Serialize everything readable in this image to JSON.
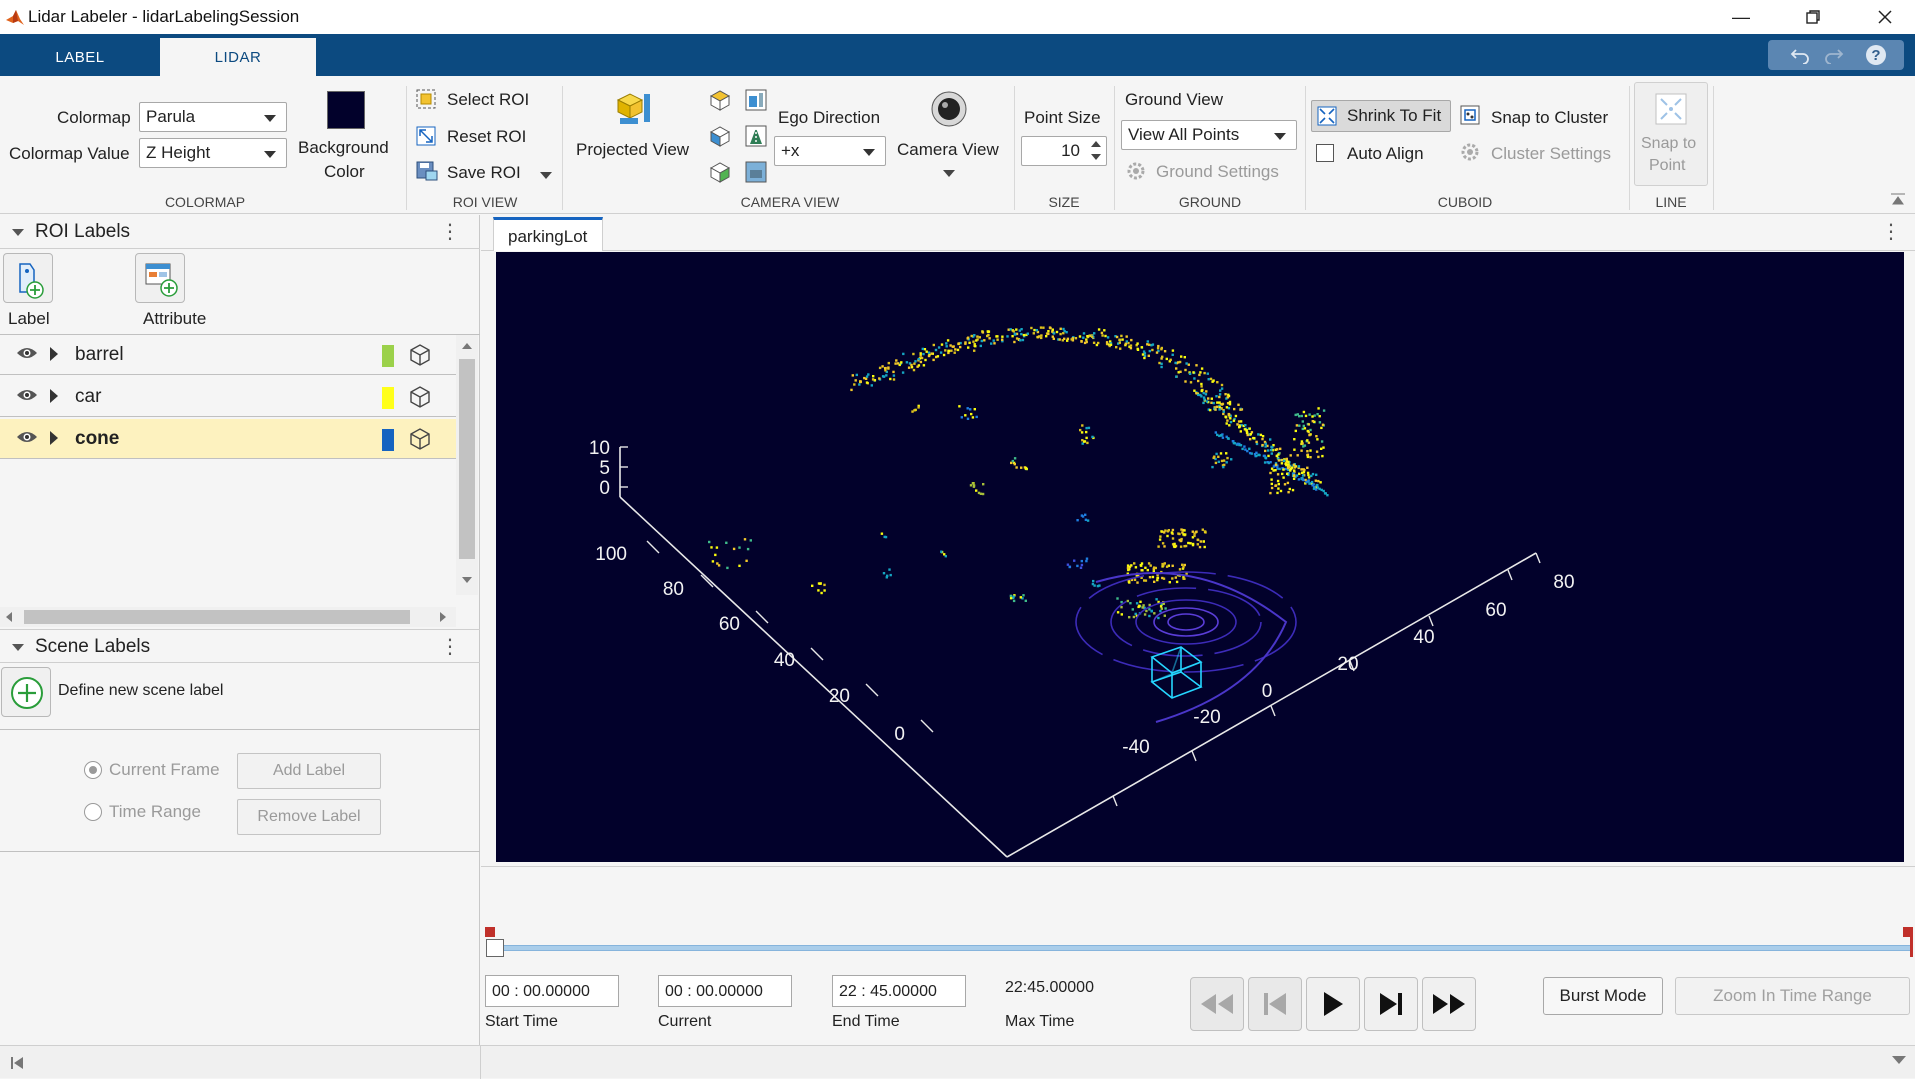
{
  "window": {
    "title": "Lidar Labeler - lidarLabelingSession"
  },
  "tabs": [
    {
      "label": "LABEL"
    },
    {
      "label": "LIDAR"
    }
  ],
  "toolstrip": {
    "colormap": {
      "group_title": "COLORMAP",
      "colormap_label": "Colormap",
      "colormap_value": "Parula",
      "colormap_value_label": "Colormap Value",
      "colormap_value_value": "Z Height",
      "background_color_label_line1": "Background",
      "background_color_label_line2": "Color",
      "background_color": "#02012b"
    },
    "roi_view": {
      "group_title": "ROI VIEW",
      "select_roi": "Select ROI",
      "reset_roi": "Reset ROI",
      "save_roi": "Save ROI"
    },
    "camera_view": {
      "group_title": "CAMERA VIEW",
      "projected_view": "Projected View",
      "ego_direction_label": "Ego Direction",
      "ego_direction_value": "+x",
      "camera_view": "Camera View"
    },
    "size": {
      "group_title": "SIZE",
      "point_size_label": "Point Size",
      "point_size_value": "10"
    },
    "ground": {
      "group_title": "GROUND",
      "ground_view_label": "Ground View",
      "ground_view_value": "View All Points",
      "ground_settings": "Ground Settings"
    },
    "cuboid": {
      "group_title": "CUBOID",
      "shrink_to_fit": "Shrink To Fit",
      "snap_to_cluster": "Snap to Cluster",
      "auto_align": "Auto Align",
      "cluster_settings": "Cluster Settings"
    },
    "line": {
      "group_title": "LINE",
      "snap_to_point_line1": "Snap to",
      "snap_to_point_line2": "Point"
    }
  },
  "roi_labels": {
    "title": "ROI Labels",
    "add_label": "Label",
    "add_attribute": "Attribute",
    "items": [
      {
        "name": "barrel",
        "color": "#9bd14a",
        "selected": false
      },
      {
        "name": "car",
        "color": "#ffff1a",
        "selected": false
      },
      {
        "name": "cone",
        "color": "#1664c0",
        "selected": true
      }
    ]
  },
  "scene_labels": {
    "title": "Scene Labels",
    "define_new": "Define new scene label",
    "current_frame": "Current Frame",
    "time_range": "Time Range",
    "add_label": "Add Label",
    "remove_label": "Remove Label"
  },
  "document": {
    "tab_name": "parkingLot"
  },
  "chart_data": {
    "type": "scatter",
    "title": "",
    "z_ticks": [
      "10",
      "5",
      "0"
    ],
    "y_ticks": [
      "100",
      "80",
      "60",
      "40",
      "20",
      "0"
    ],
    "x_ticks": [
      "-40",
      "-20",
      "0",
      "20",
      "40",
      "60",
      "80"
    ],
    "colormap": "parula"
  },
  "timeline": {
    "start_time": "00 :  00.00000",
    "start_time_label": "Start Time",
    "current_time": "00 :  00.00000",
    "current_label": "Current",
    "end_time": "22 :  45.00000",
    "end_time_label": "End Time",
    "max_time": "22:45.00000",
    "max_time_label": "Max Time",
    "burst_mode": "Burst Mode",
    "zoom_in_time_range": "Zoom In Time Range"
  }
}
